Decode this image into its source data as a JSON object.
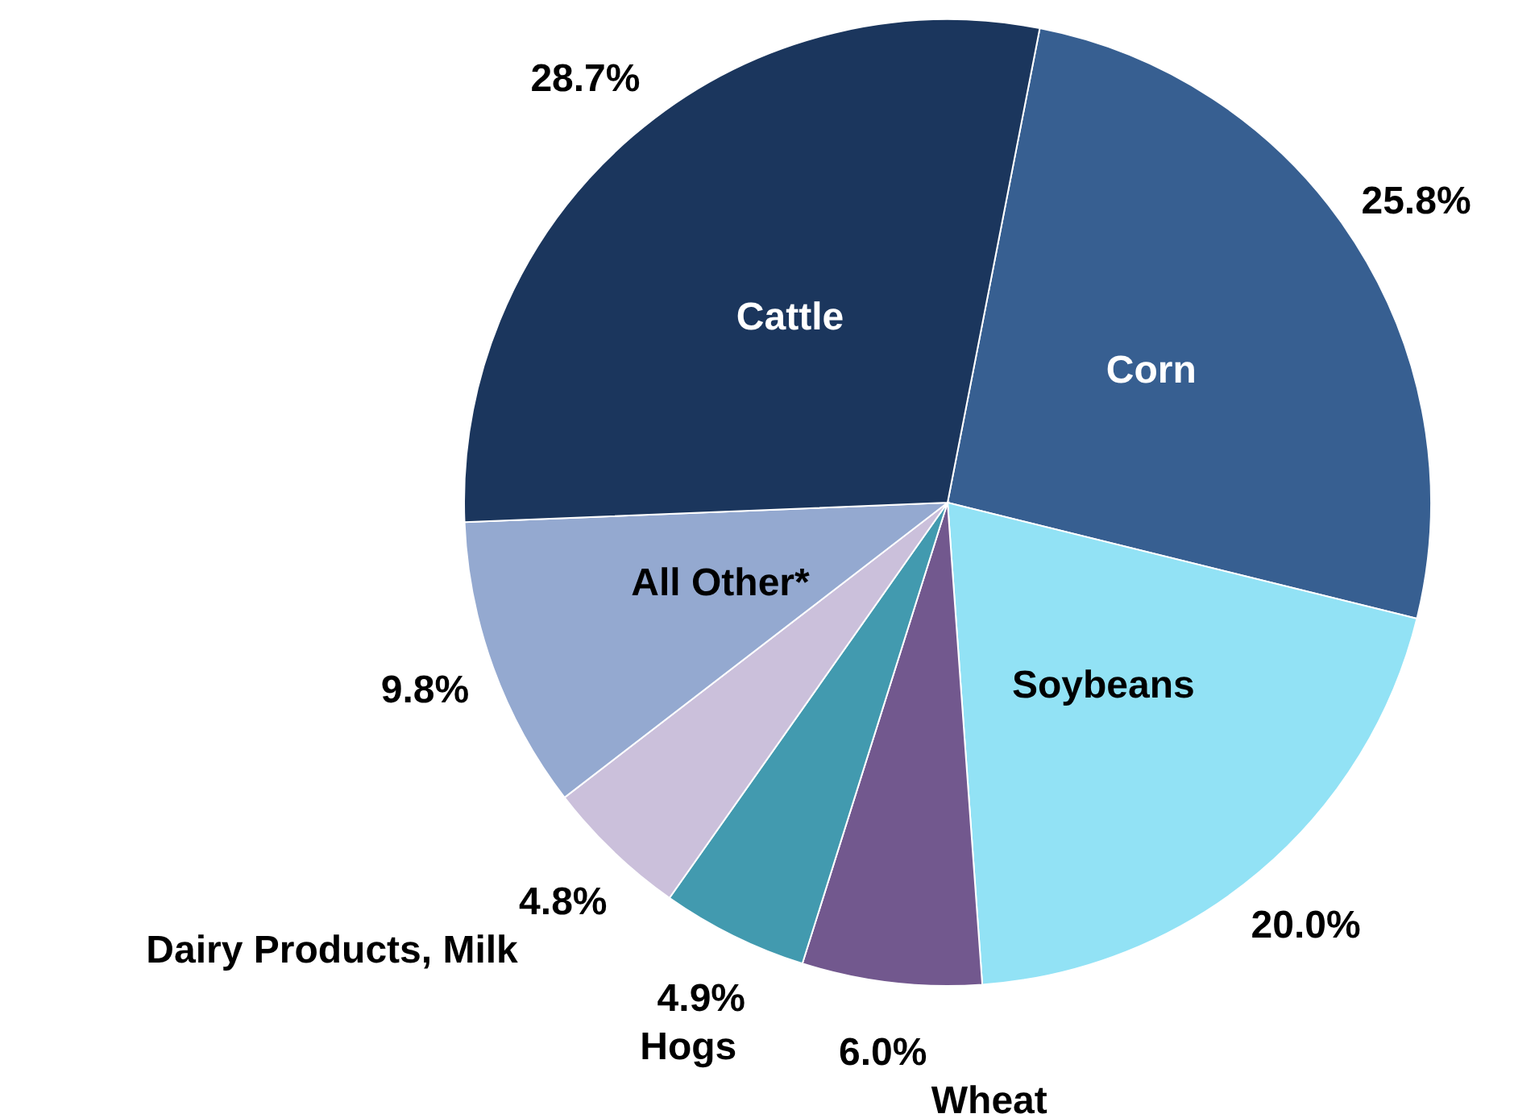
{
  "chart_data": {
    "type": "pie",
    "categories": [
      "Corn",
      "Soybeans",
      "Wheat",
      "Hogs",
      "Dairy Products, Milk",
      "All Other*",
      "Cattle"
    ],
    "values": [
      25.8,
      20.0,
      6.0,
      4.9,
      4.8,
      9.8,
      28.7
    ],
    "value_labels": [
      "25.8%",
      "20.0%",
      "6.0%",
      "4.9%",
      "4.8%",
      "9.8%",
      "28.7%"
    ],
    "colors": [
      "#375f91",
      "#92e2f5",
      "#72588e",
      "#429aaf",
      "#cbc0db",
      "#94a9d0",
      "#1b365d"
    ]
  }
}
